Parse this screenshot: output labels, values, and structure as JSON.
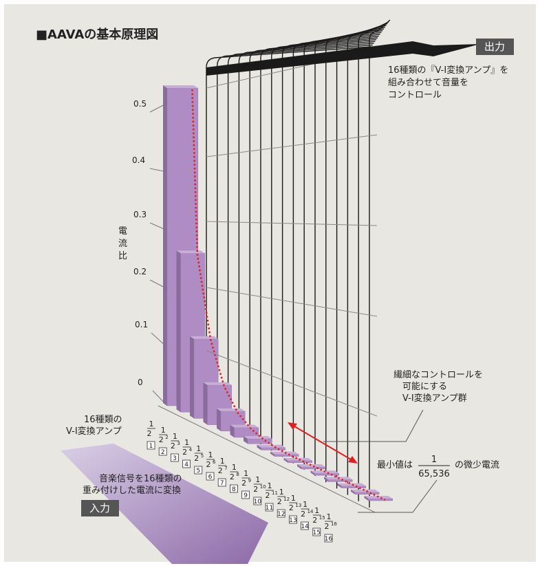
{
  "title": "■AAVAの基本原理図",
  "output_label": "出力",
  "input_label": "入力",
  "output_note": [
    "16種類の『V-I変換アンプ』を",
    "組み合わせて音量を",
    "コントロール"
  ],
  "amp_group_note": [
    "繊細なコントロールを",
    "可能にする",
    "V-I変換アンプ群"
  ],
  "amp_types_label": [
    "16種類の",
    "V-I変換アンプ"
  ],
  "input_note": [
    "音楽信号を16種類の",
    "重み付けした電流に変換"
  ],
  "min_value_prefix": "最小値は",
  "min_value_numerator": "1",
  "min_value_denominator": "65,536",
  "min_value_suffix": "の微少電流",
  "y_axis_label": "電流比",
  "chart_data": {
    "type": "bar",
    "categories": [
      "1",
      "2",
      "3",
      "4",
      "5",
      "6",
      "7",
      "8",
      "9",
      "10",
      "11",
      "12",
      "13",
      "14",
      "15",
      "16"
    ],
    "fraction_labels": [
      "1/2",
      "1/2²",
      "1/2³",
      "1/2⁴",
      "1/2⁵",
      "1/2⁶",
      "1/2⁷",
      "1/2⁸",
      "1/2⁹",
      "1/2¹⁰",
      "1/2¹¹",
      "1/2¹²",
      "1/2¹³",
      "1/2¹⁴",
      "1/2¹⁵",
      "1/2¹⁶"
    ],
    "exponents": [
      "",
      "2",
      "3",
      "4",
      "5",
      "6",
      "7",
      "8",
      "9",
      "10",
      "11",
      "12",
      "13",
      "14",
      "15",
      "16"
    ],
    "values": [
      0.5,
      0.25,
      0.125,
      0.0625,
      0.03125,
      0.015625,
      0.0078125,
      0.00390625,
      0.001953125,
      0.0009765625,
      0.00048828125,
      0.000244140625,
      0.0001220703125,
      6.103515625e-05,
      3.0517578125e-05,
      1.52587890625e-05
    ],
    "yticks": [
      "0",
      "0.1",
      "0.2",
      "0.3",
      "0.4",
      "0.5"
    ],
    "ylim": [
      0,
      0.5
    ],
    "ylabel": "電流比",
    "bar_color": "#b08cc4",
    "curve_color": "#e02020",
    "arrow_color": "#e02020"
  }
}
